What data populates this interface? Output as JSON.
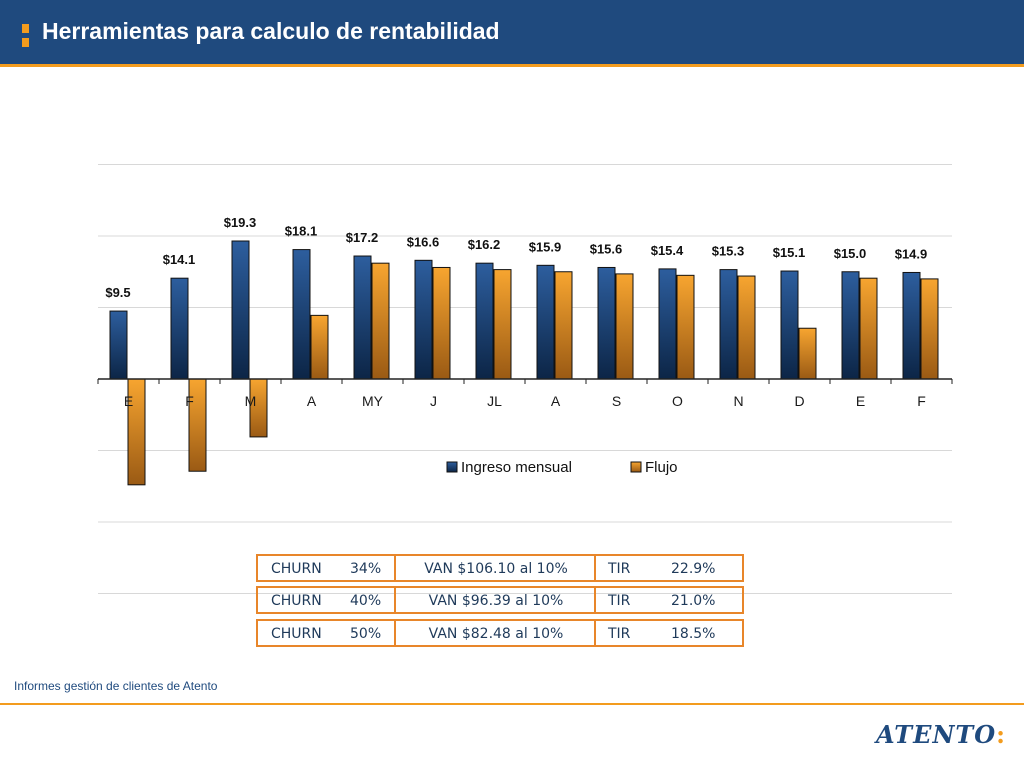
{
  "header": {
    "title": "Herramientas para calculo de rentabilidad",
    "bullet_color": "#f39c1e",
    "background": "#1f4a7e"
  },
  "chart_data": {
    "type": "bar",
    "categories": [
      "E",
      "F",
      "M",
      "A",
      "MY",
      "J",
      "JL",
      "A",
      "S",
      "O",
      "N",
      "D",
      "E",
      "F"
    ],
    "series": [
      {
        "name": "Ingreso mensual",
        "color": "#1f4a7e",
        "values": [
          9.5,
          14.1,
          19.3,
          18.1,
          17.2,
          16.6,
          16.2,
          15.9,
          15.6,
          15.4,
          15.3,
          15.1,
          15.0,
          14.9
        ]
      },
      {
        "name": "Flujo",
        "color": "#f39c1e",
        "values": [
          -14.8,
          -12.9,
          -8.1,
          8.9,
          16.2,
          15.6,
          15.3,
          15.0,
          14.7,
          14.5,
          14.4,
          7.1,
          14.1,
          14.0
        ]
      }
    ],
    "data_labels": [
      "$9.5",
      "$14.1",
      "$19.3",
      "$18.1",
      "$17.2",
      "$16.6",
      "$16.2",
      "$15.9",
      "$15.6",
      "$15.4",
      "$15.3",
      "$15.1",
      "$15.0",
      "$14.9"
    ],
    "ylim": [
      -30,
      30
    ],
    "grid": true,
    "legend_position": "bottom"
  },
  "scenarios": [
    {
      "churn_label": "CHURN",
      "churn_value": "34%",
      "van": "VAN $106.10 al 10%",
      "tir_label": "TIR",
      "tir_value": "22.9%"
    },
    {
      "churn_label": "CHURN",
      "churn_value": "40%",
      "van": "VAN $96.39 al 10%",
      "tir_label": "TIR",
      "tir_value": "21.0%"
    },
    {
      "churn_label": "CHURN",
      "churn_value": "50%",
      "van": "VAN $82.48 al 10%",
      "tir_label": "TIR",
      "tir_value": "18.5%"
    }
  ],
  "footer": {
    "text": "Informes gestión de clientes de Atento",
    "logo": "ATENTO"
  }
}
